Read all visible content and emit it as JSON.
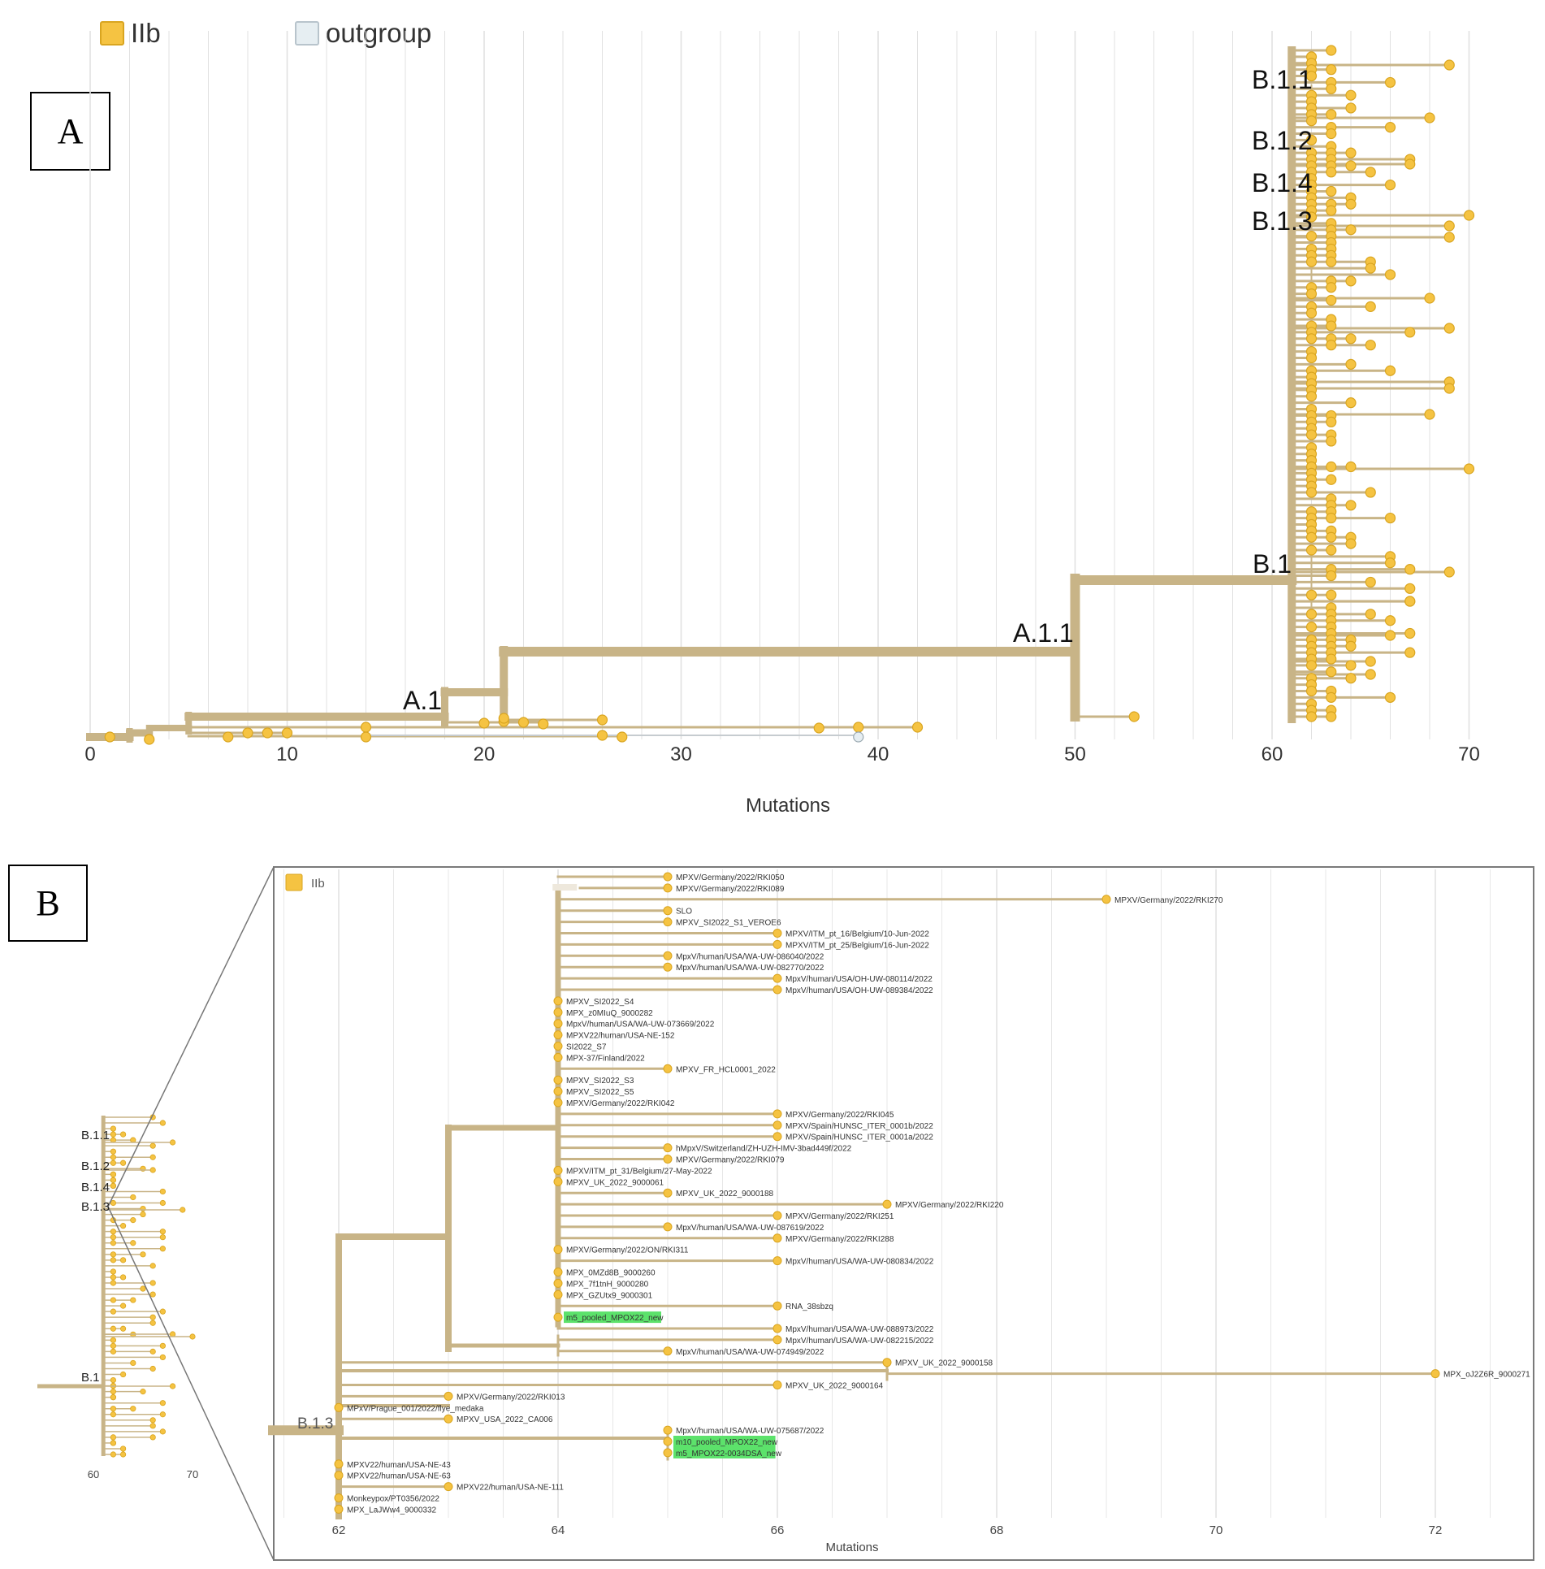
{
  "panel_a": {
    "label": "A",
    "legend": [
      {
        "label": "IIb",
        "color": "#f5c342",
        "border": "#d9a520"
      },
      {
        "label": "outgroup",
        "color": "#e6eef2",
        "border": "#b8c4cc"
      }
    ],
    "axis_label": "Mutations",
    "ticks": [
      0,
      10,
      20,
      30,
      40,
      50,
      60,
      70
    ],
    "clade_labels": [
      "B.1.1",
      "B.1.2",
      "B.1.4",
      "B.1.3",
      "B.1",
      "A.1.1",
      "A.1"
    ]
  },
  "panel_b": {
    "label": "B",
    "legend": [
      {
        "label": "IIb",
        "color": "#f5c342"
      }
    ],
    "axis_label": "Mutations",
    "ticks": [
      62,
      64,
      66,
      68,
      70,
      72
    ],
    "overview": {
      "clade_labels": [
        "B.1.1",
        "B.1.2",
        "B.1.4",
        "B.1.3",
        "B.1"
      ],
      "ticks": [
        60,
        70
      ]
    },
    "clade_label": "B.1.3",
    "leaves": [
      {
        "name": "MPXV/Germany/2022/RKI050",
        "mut": 65,
        "hl": false
      },
      {
        "name": "MPXV/Germany/2022/RKI089",
        "mut": 65,
        "hl": false
      },
      {
        "name": "MPXV/Germany/2022/RKI270",
        "mut": 69,
        "hl": false
      },
      {
        "name": "SLO",
        "mut": 65,
        "hl": false
      },
      {
        "name": "MPXV_SI2022_S1_VEROE6",
        "mut": 65,
        "hl": false
      },
      {
        "name": "MPXV/ITM_pt_16/Belgium/10-Jun-2022",
        "mut": 66,
        "hl": false
      },
      {
        "name": "MPXV/ITM_pt_25/Belgium/16-Jun-2022",
        "mut": 66,
        "hl": false
      },
      {
        "name": "MpxV/human/USA/WA-UW-086040/2022",
        "mut": 65,
        "hl": false
      },
      {
        "name": "MpxV/human/USA/WA-UW-082770/2022",
        "mut": 65,
        "hl": false
      },
      {
        "name": "MpxV/human/USA/OH-UW-080114/2022",
        "mut": 66,
        "hl": false
      },
      {
        "name": "MpxV/human/USA/OH-UW-089384/2022",
        "mut": 66,
        "hl": false
      },
      {
        "name": "MPXV_SI2022_S4",
        "mut": 64,
        "hl": false
      },
      {
        "name": "MPX_z0MIuQ_9000282",
        "mut": 64,
        "hl": false
      },
      {
        "name": "MpxV/human/USA/WA-UW-073669/2022",
        "mut": 64,
        "hl": false
      },
      {
        "name": "MPXV22/human/USA-NE-152",
        "mut": 64,
        "hl": false
      },
      {
        "name": "SI2022_S7",
        "mut": 64,
        "hl": false
      },
      {
        "name": "MPX-37/Finland/2022",
        "mut": 64,
        "hl": false
      },
      {
        "name": "MPXV_FR_HCL0001_2022",
        "mut": 65,
        "hl": false
      },
      {
        "name": "MPXV_SI2022_S3",
        "mut": 64,
        "hl": false
      },
      {
        "name": "MPXV_SI2022_S5",
        "mut": 64,
        "hl": false
      },
      {
        "name": "MPXV/Germany/2022/RKI042",
        "mut": 64,
        "hl": false
      },
      {
        "name": "MPXV/Germany/2022/RKI045",
        "mut": 66,
        "hl": false
      },
      {
        "name": "MPXV/Spain/HUNSC_ITER_0001b/2022",
        "mut": 66,
        "hl": false
      },
      {
        "name": "MPXV/Spain/HUNSC_ITER_0001a/2022",
        "mut": 66,
        "hl": false
      },
      {
        "name": "hMpxV/Switzerland/ZH-UZH-IMV-3bad449f/2022",
        "mut": 65,
        "hl": false
      },
      {
        "name": "MPXV/Germany/2022/RKI079",
        "mut": 65,
        "hl": false
      },
      {
        "name": "MPXV/ITM_pt_31/Belgium/27-May-2022",
        "mut": 64,
        "hl": false
      },
      {
        "name": "MPXV_UK_2022_9000061",
        "mut": 64,
        "hl": false
      },
      {
        "name": "MPXV_UK_2022_9000188",
        "mut": 65,
        "hl": false
      },
      {
        "name": "MPXV/Germany/2022/RKI220",
        "mut": 67,
        "hl": false
      },
      {
        "name": "MPXV/Germany/2022/RKI251",
        "mut": 66,
        "hl": false
      },
      {
        "name": "MpxV/human/USA/WA-UW-087619/2022",
        "mut": 65,
        "hl": false
      },
      {
        "name": "MPXV/Germany/2022/RKI288",
        "mut": 66,
        "hl": false
      },
      {
        "name": "MPXV/Germany/2022/ON/RKI311",
        "mut": 64,
        "hl": false
      },
      {
        "name": "MpxV/human/USA/WA-UW-080834/2022",
        "mut": 66,
        "hl": false
      },
      {
        "name": "MPX_0MZd8B_9000260",
        "mut": 64,
        "hl": false
      },
      {
        "name": "MPX_7f1tnH_9000280",
        "mut": 64,
        "hl": false
      },
      {
        "name": "MPX_GZUtx9_9000301",
        "mut": 64,
        "hl": false
      },
      {
        "name": "RNA_38sbzq",
        "mut": 66,
        "hl": false
      },
      {
        "name": "m5_pooled_MPOX22_new",
        "mut": 64,
        "hl": true
      },
      {
        "name": "MpxV/human/USA/WA-UW-088973/2022",
        "mut": 66,
        "hl": false
      },
      {
        "name": "MpxV/human/USA/WA-UW-082215/2022",
        "mut": 66,
        "hl": false
      },
      {
        "name": "MpxV/human/USA/WA-UW-074949/2022",
        "mut": 65,
        "hl": false
      },
      {
        "name": "MPXV_UK_2022_9000158",
        "mut": 67,
        "hl": false
      },
      {
        "name": "MPX_oJ2Z6R_9000271",
        "mut": 72,
        "hl": false
      },
      {
        "name": "MPXV_UK_2022_9000164",
        "mut": 66,
        "hl": false
      },
      {
        "name": "MPXV/Germany/2022/RKI013",
        "mut": 63,
        "hl": false
      },
      {
        "name": "MPxV/Prague_001/2022/flye_medaka",
        "mut": 62,
        "hl": false
      },
      {
        "name": "MPXV_USA_2022_CA006",
        "mut": 63,
        "hl": false
      },
      {
        "name": "MpxV/human/USA/WA-UW-075687/2022",
        "mut": 65,
        "hl": false
      },
      {
        "name": "m10_pooled_MPOX22_new",
        "mut": 65,
        "hl": true
      },
      {
        "name": "m5_MPOX22-0034DSA_new",
        "mut": 65,
        "hl": true
      },
      {
        "name": "MPXV22/human/USA-NE-43",
        "mut": 62,
        "hl": false
      },
      {
        "name": "MPXV22/human/USA-NE-63",
        "mut": 62,
        "hl": false
      },
      {
        "name": "MPXV22/human/USA-NE-111",
        "mut": 63,
        "hl": false
      },
      {
        "name": "Monkeypox/PT0356/2022",
        "mut": 62,
        "hl": false
      },
      {
        "name": "MPX_LaJWw4_9000332",
        "mut": 62,
        "hl": false
      }
    ]
  },
  "colors": {
    "branch": "#c8b487",
    "tip": "#f5c342",
    "tip_stroke": "#d9a520",
    "outgroup_tip": "#e6eef2",
    "highlight": "#5ce26b",
    "grid": "#e1e1e1"
  }
}
